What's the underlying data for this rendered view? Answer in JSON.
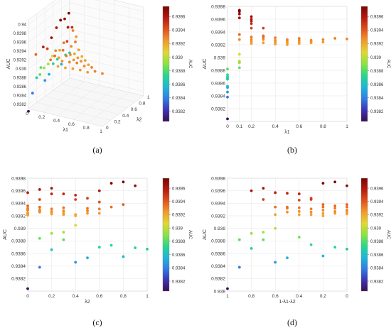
{
  "figure": {
    "captions": [
      "(a)",
      "(b)",
      "(c)",
      "(d)"
    ]
  },
  "colorbar": {
    "label": "AUC",
    "ticks": [
      "0.9396",
      "0.9394",
      "0.9392",
      "0.939",
      "0.9388",
      "0.9386",
      "0.9384",
      "0.9382"
    ],
    "tick_values": [
      0.9396,
      0.9394,
      0.9392,
      0.939,
      0.9388,
      0.9386,
      0.9384,
      0.9382
    ],
    "range": [
      0.93805,
      0.93975
    ],
    "colormap": [
      "#3b0f4f",
      "#3e35b6",
      "#2f7fe6",
      "#1cb8d8",
      "#27d88a",
      "#8be43f",
      "#e2d82e",
      "#f39a2b",
      "#e2521b",
      "#b81a0e",
      "#7a0403"
    ]
  },
  "chart_data": [
    {
      "type": "scatter3d",
      "panel": "a",
      "zlabel": "AUC",
      "xlabel": "λ1",
      "ylabel": "λ2",
      "z_ticks": [
        "0.94",
        "0.9398",
        "0.9396",
        "0.9394",
        "0.9392",
        "0.939",
        "0.9388",
        "0.9386",
        "0.9384",
        "0.9382"
      ],
      "x_ticks": [
        "0",
        "0.2",
        "0.4",
        "0.6",
        "0.8",
        "1"
      ],
      "y_ticks": [
        "0",
        "0.2",
        "0.4",
        "0.6",
        "0.8",
        "1"
      ],
      "points": [
        [
          0.0,
          0.0,
          0.93804
        ],
        [
          0.0,
          0.1,
          0.93838
        ],
        [
          0.0,
          0.2,
          0.93866
        ],
        [
          0.0,
          0.3,
          0.93882
        ],
        [
          0.0,
          0.4,
          0.93846
        ],
        [
          0.0,
          0.5,
          0.93853
        ],
        [
          0.0,
          0.6,
          0.9387
        ],
        [
          0.0,
          0.7,
          0.93873
        ],
        [
          0.0,
          0.8,
          0.93855
        ],
        [
          0.0,
          0.9,
          0.93869
        ],
        [
          0.0,
          1.0,
          0.93867
        ],
        [
          0.1,
          0.0,
          0.93936
        ],
        [
          0.1,
          0.1,
          0.93884
        ],
        [
          0.1,
          0.2,
          0.93892
        ],
        [
          0.1,
          0.3,
          0.93894
        ],
        [
          0.1,
          0.4,
          0.93905
        ],
        [
          0.1,
          0.5,
          0.93962
        ],
        [
          0.1,
          0.6,
          0.93972
        ],
        [
          0.1,
          0.7,
          0.93968
        ],
        [
          0.1,
          0.8,
          0.93974
        ],
        [
          0.1,
          0.9,
          0.93928
        ],
        [
          0.2,
          0.0,
          0.93957
        ],
        [
          0.2,
          0.1,
          0.93946
        ],
        [
          0.2,
          0.2,
          0.93964
        ],
        [
          0.2,
          0.3,
          0.93928
        ],
        [
          0.2,
          0.4,
          0.93922
        ],
        [
          0.2,
          0.5,
          0.93932
        ],
        [
          0.2,
          0.6,
          0.9396
        ],
        [
          0.2,
          0.7,
          0.93953
        ],
        [
          0.2,
          0.8,
          0.93925
        ],
        [
          0.3,
          0.0,
          0.93932
        ],
        [
          0.3,
          0.1,
          0.93934
        ],
        [
          0.3,
          0.2,
          0.93923
        ],
        [
          0.3,
          0.3,
          0.93933
        ],
        [
          0.3,
          0.4,
          0.93946
        ],
        [
          0.3,
          0.5,
          0.93928
        ],
        [
          0.3,
          0.6,
          0.93931
        ],
        [
          0.4,
          0.0,
          0.93921
        ],
        [
          0.4,
          0.1,
          0.93926
        ],
        [
          0.4,
          0.2,
          0.93931
        ],
        [
          0.4,
          0.3,
          0.93927
        ],
        [
          0.4,
          0.4,
          0.93922
        ],
        [
          0.4,
          0.5,
          0.93924
        ],
        [
          0.5,
          0.0,
          0.93922
        ],
        [
          0.5,
          0.1,
          0.93928
        ],
        [
          0.5,
          0.2,
          0.93926
        ],
        [
          0.5,
          0.3,
          0.93924
        ],
        [
          0.5,
          0.4,
          0.9392
        ],
        [
          0.6,
          0.0,
          0.93924
        ],
        [
          0.6,
          0.1,
          0.9393
        ],
        [
          0.6,
          0.2,
          0.93927
        ],
        [
          0.6,
          0.3,
          0.93922
        ],
        [
          0.7,
          0.0,
          0.93925
        ],
        [
          0.7,
          0.1,
          0.93927
        ],
        [
          0.7,
          0.2,
          0.93923
        ],
        [
          0.8,
          0.0,
          0.93924
        ],
        [
          0.8,
          0.1,
          0.93928
        ],
        [
          0.9,
          0.0,
          0.9393
        ],
        [
          1.0,
          0.0,
          0.93929
        ]
      ]
    },
    {
      "type": "scatter",
      "panel": "b",
      "xlabel": "λ1",
      "ylabel": "AUC",
      "xlim": [
        0,
        1
      ],
      "ylim": [
        0.938,
        0.9398
      ],
      "x_ticks": [
        "0",
        "0.1",
        "0.2",
        "0.4",
        "0.6",
        "0.8",
        "1"
      ],
      "x_tick_values": [
        0,
        0.1,
        0.2,
        0.4,
        0.6,
        0.8,
        1
      ],
      "y_ticks": [
        "0.9398",
        "0.9396",
        "0.9394",
        "0.9392",
        "0.939",
        "0.9388",
        "0.9386",
        "0.9384",
        "0.9382"
      ],
      "y_tick_values": [
        0.9398,
        0.9396,
        0.9394,
        0.9392,
        0.939,
        0.9388,
        0.9386,
        0.9384,
        0.9382
      ],
      "points": [
        [
          0.0,
          0.93804
        ],
        [
          0.0,
          0.93838
        ],
        [
          0.0,
          0.93846
        ],
        [
          0.0,
          0.93853
        ],
        [
          0.0,
          0.93855
        ],
        [
          0.0,
          0.93866
        ],
        [
          0.0,
          0.93867
        ],
        [
          0.0,
          0.93869
        ],
        [
          0.0,
          0.9387
        ],
        [
          0.0,
          0.93873
        ],
        [
          0.0,
          0.93882
        ],
        [
          0.1,
          0.93884
        ],
        [
          0.1,
          0.93892
        ],
        [
          0.1,
          0.93894
        ],
        [
          0.1,
          0.93905
        ],
        [
          0.1,
          0.93928
        ],
        [
          0.1,
          0.93936
        ],
        [
          0.1,
          0.93962
        ],
        [
          0.1,
          0.93968
        ],
        [
          0.1,
          0.93972
        ],
        [
          0.1,
          0.93974
        ],
        [
          0.2,
          0.93922
        ],
        [
          0.2,
          0.93925
        ],
        [
          0.2,
          0.93928
        ],
        [
          0.2,
          0.93932
        ],
        [
          0.2,
          0.93946
        ],
        [
          0.2,
          0.93953
        ],
        [
          0.2,
          0.93957
        ],
        [
          0.2,
          0.9396
        ],
        [
          0.2,
          0.93964
        ],
        [
          0.3,
          0.93923
        ],
        [
          0.3,
          0.93928
        ],
        [
          0.3,
          0.93931
        ],
        [
          0.3,
          0.93932
        ],
        [
          0.3,
          0.93933
        ],
        [
          0.3,
          0.93934
        ],
        [
          0.3,
          0.93946
        ],
        [
          0.4,
          0.93921
        ],
        [
          0.4,
          0.93922
        ],
        [
          0.4,
          0.93924
        ],
        [
          0.4,
          0.93926
        ],
        [
          0.4,
          0.93927
        ],
        [
          0.4,
          0.93931
        ],
        [
          0.5,
          0.9392
        ],
        [
          0.5,
          0.93922
        ],
        [
          0.5,
          0.93924
        ],
        [
          0.5,
          0.93926
        ],
        [
          0.5,
          0.93928
        ],
        [
          0.6,
          0.93922
        ],
        [
          0.6,
          0.93924
        ],
        [
          0.6,
          0.93927
        ],
        [
          0.6,
          0.9393
        ],
        [
          0.7,
          0.93923
        ],
        [
          0.7,
          0.93925
        ],
        [
          0.7,
          0.93927
        ],
        [
          0.8,
          0.93924
        ],
        [
          0.8,
          0.93928
        ],
        [
          0.9,
          0.9393
        ],
        [
          1.0,
          0.93929
        ]
      ]
    },
    {
      "type": "scatter",
      "panel": "c",
      "xlabel": "λ2",
      "ylabel": "AUC",
      "xlim": [
        0,
        1
      ],
      "ylim": [
        0.938,
        0.9398
      ],
      "x_ticks": [
        "0",
        "0.2",
        "0.4",
        "0.6",
        "0.8",
        "1"
      ],
      "x_tick_values": [
        0,
        0.2,
        0.4,
        0.6,
        0.8,
        1
      ],
      "y_ticks": [
        "0.9398",
        "0.9396",
        "0.9394",
        "0.9392",
        "0.939",
        "0.9388",
        "0.9386",
        "0.9384",
        "0.9382"
      ],
      "y_tick_values": [
        0.9398,
        0.9396,
        0.9394,
        0.9392,
        0.939,
        0.9388,
        0.9386,
        0.9384,
        0.9382
      ],
      "points": [
        [
          0.0,
          0.93804
        ],
        [
          0.0,
          0.93936
        ],
        [
          0.0,
          0.93957
        ],
        [
          0.0,
          0.93932
        ],
        [
          0.0,
          0.93921
        ],
        [
          0.0,
          0.93922
        ],
        [
          0.0,
          0.93924
        ],
        [
          0.0,
          0.93925
        ],
        [
          0.0,
          0.93924
        ],
        [
          0.0,
          0.9393
        ],
        [
          0.0,
          0.93929
        ],
        [
          0.1,
          0.93838
        ],
        [
          0.1,
          0.93884
        ],
        [
          0.1,
          0.93946
        ],
        [
          0.1,
          0.93934
        ],
        [
          0.1,
          0.93926
        ],
        [
          0.1,
          0.93928
        ],
        [
          0.1,
          0.9393
        ],
        [
          0.1,
          0.93927
        ],
        [
          0.1,
          0.93928
        ],
        [
          0.1,
          0.93962
        ],
        [
          0.2,
          0.93866
        ],
        [
          0.2,
          0.93892
        ],
        [
          0.2,
          0.93964
        ],
        [
          0.2,
          0.93923
        ],
        [
          0.2,
          0.93931
        ],
        [
          0.2,
          0.93926
        ],
        [
          0.2,
          0.93927
        ],
        [
          0.2,
          0.93923
        ],
        [
          0.2,
          0.93955
        ],
        [
          0.3,
          0.93882
        ],
        [
          0.3,
          0.93894
        ],
        [
          0.3,
          0.93928
        ],
        [
          0.3,
          0.93933
        ],
        [
          0.3,
          0.93927
        ],
        [
          0.3,
          0.93924
        ],
        [
          0.3,
          0.93922
        ],
        [
          0.3,
          0.93955
        ],
        [
          0.4,
          0.93846
        ],
        [
          0.4,
          0.93905
        ],
        [
          0.4,
          0.93922
        ],
        [
          0.4,
          0.93946
        ],
        [
          0.4,
          0.93922
        ],
        [
          0.4,
          0.9392
        ],
        [
          0.4,
          0.93953
        ],
        [
          0.5,
          0.93853
        ],
        [
          0.5,
          0.93928
        ],
        [
          0.5,
          0.93932
        ],
        [
          0.5,
          0.93928
        ],
        [
          0.5,
          0.93924
        ],
        [
          0.5,
          0.93948
        ],
        [
          0.6,
          0.9387
        ],
        [
          0.6,
          0.93924
        ],
        [
          0.6,
          0.93931
        ],
        [
          0.6,
          0.93942
        ],
        [
          0.6,
          0.9396
        ],
        [
          0.7,
          0.93873
        ],
        [
          0.7,
          0.93934
        ],
        [
          0.7,
          0.93972
        ],
        [
          0.8,
          0.93855
        ],
        [
          0.8,
          0.93938
        ],
        [
          0.8,
          0.93974
        ],
        [
          0.9,
          0.93869
        ],
        [
          0.9,
          0.93968
        ],
        [
          1.0,
          0.93867
        ]
      ]
    },
    {
      "type": "scatter",
      "panel": "d",
      "xlabel": "1-λ1-λ2",
      "ylabel": "AUC",
      "xlim": [
        1,
        0
      ],
      "ylim": [
        0.938,
        0.9398
      ],
      "x_ticks": [
        "1",
        "0.8",
        "0.6",
        "0.4",
        "0.2",
        "0"
      ],
      "x_tick_values": [
        1,
        0.8,
        0.6,
        0.4,
        0.2,
        0
      ],
      "y_ticks": [
        "0.9398",
        "0.9396",
        "0.9394",
        "0.9392",
        "0.939",
        "0.9388",
        "0.9386",
        "0.9384",
        "0.9382",
        "0.938"
      ],
      "y_tick_values": [
        0.9398,
        0.9396,
        0.9394,
        0.9392,
        0.939,
        0.9388,
        0.9386,
        0.9384,
        0.9382,
        0.938
      ],
      "points": [
        [
          1.0,
          0.93804
        ],
        [
          0.9,
          0.93838
        ],
        [
          0.9,
          0.93882
        ],
        [
          0.8,
          0.93868
        ],
        [
          0.8,
          0.93892
        ],
        [
          0.8,
          0.9396
        ],
        [
          0.7,
          0.93882
        ],
        [
          0.7,
          0.93894
        ],
        [
          0.7,
          0.93946
        ],
        [
          0.7,
          0.93964
        ],
        [
          0.6,
          0.93846
        ],
        [
          0.6,
          0.939
        ],
        [
          0.6,
          0.93922
        ],
        [
          0.6,
          0.93934
        ],
        [
          0.6,
          0.93957
        ],
        [
          0.5,
          0.93853
        ],
        [
          0.5,
          0.93926
        ],
        [
          0.5,
          0.93932
        ],
        [
          0.5,
          0.93934
        ],
        [
          0.5,
          0.93956
        ],
        [
          0.4,
          0.93886
        ],
        [
          0.4,
          0.93922
        ],
        [
          0.4,
          0.93927
        ],
        [
          0.4,
          0.93933
        ],
        [
          0.4,
          0.93945
        ],
        [
          0.4,
          0.93955
        ],
        [
          0.3,
          0.93874
        ],
        [
          0.3,
          0.93922
        ],
        [
          0.3,
          0.93926
        ],
        [
          0.3,
          0.93931
        ],
        [
          0.3,
          0.93946
        ],
        [
          0.3,
          0.93948
        ],
        [
          0.2,
          0.93856
        ],
        [
          0.2,
          0.9392
        ],
        [
          0.2,
          0.93924
        ],
        [
          0.2,
          0.93929
        ],
        [
          0.2,
          0.93934
        ],
        [
          0.2,
          0.93938
        ],
        [
          0.2,
          0.93972
        ],
        [
          0.1,
          0.9387
        ],
        [
          0.1,
          0.93924
        ],
        [
          0.1,
          0.93927
        ],
        [
          0.1,
          0.93932
        ],
        [
          0.1,
          0.93936
        ],
        [
          0.1,
          0.93974
        ],
        [
          0.0,
          0.93867
        ],
        [
          0.0,
          0.93923
        ],
        [
          0.0,
          0.93926
        ],
        [
          0.0,
          0.93929
        ],
        [
          0.0,
          0.93934
        ],
        [
          0.0,
          0.93938
        ],
        [
          0.0,
          0.93968
        ]
      ]
    }
  ]
}
